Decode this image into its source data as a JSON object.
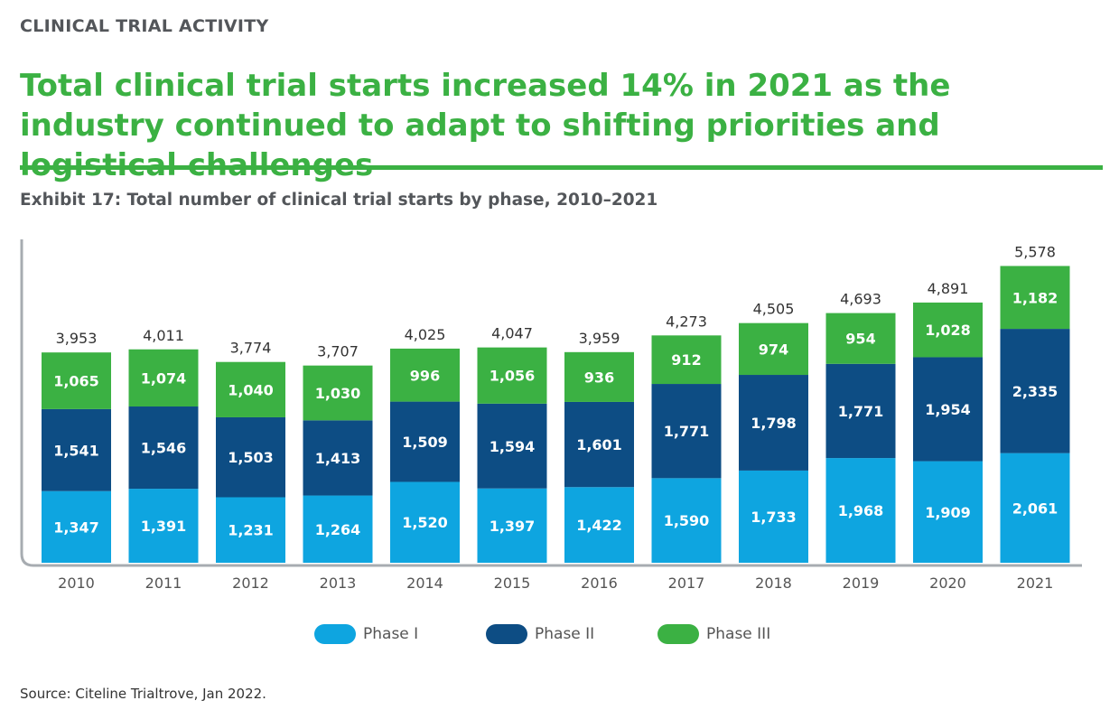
{
  "header": {
    "section_label": "CLINICAL TRIAL ACTIVITY",
    "headline": "Total clinical trial starts increased 14% in 2021 as the industry continued to adapt to shifting priorities and logistical challenges",
    "exhibit_title": "Exhibit 17: Total number of clinical trial starts by phase, 2010–2021"
  },
  "source": "Source: Citeline Trialtrove, Jan 2022.",
  "colors": {
    "accent_green": "#3bb143",
    "phase1": "#0ea5e0",
    "phase2": "#0d4d84",
    "phase3": "#3bb143",
    "axis": "#a7acb1"
  },
  "chart_data": {
    "type": "bar",
    "stacked": true,
    "title": "Exhibit 17: Total number of clinical trial starts by phase, 2010–2021",
    "xlabel": "",
    "ylabel": "",
    "ylim": [
      0,
      5800
    ],
    "grid": false,
    "legend_position": "bottom-center",
    "categories": [
      "2010",
      "2011",
      "2012",
      "2013",
      "2014",
      "2015",
      "2016",
      "2017",
      "2018",
      "2019",
      "2020",
      "2021"
    ],
    "series": [
      {
        "name": "Phase I",
        "color": "#0ea5e0",
        "values": [
          1347,
          1391,
          1231,
          1264,
          1520,
          1397,
          1422,
          1590,
          1733,
          1968,
          1909,
          2061
        ]
      },
      {
        "name": "Phase II",
        "color": "#0d4d84",
        "values": [
          1541,
          1546,
          1503,
          1413,
          1509,
          1594,
          1601,
          1771,
          1798,
          1771,
          1954,
          2335
        ]
      },
      {
        "name": "Phase III",
        "color": "#3bb143",
        "values": [
          1065,
          1074,
          1040,
          1030,
          996,
          1056,
          936,
          912,
          974,
          954,
          1028,
          1182
        ]
      }
    ],
    "totals": [
      3953,
      4011,
      3774,
      3707,
      4025,
      4047,
      3959,
      4273,
      4505,
      4693,
      4891,
      5578
    ]
  }
}
